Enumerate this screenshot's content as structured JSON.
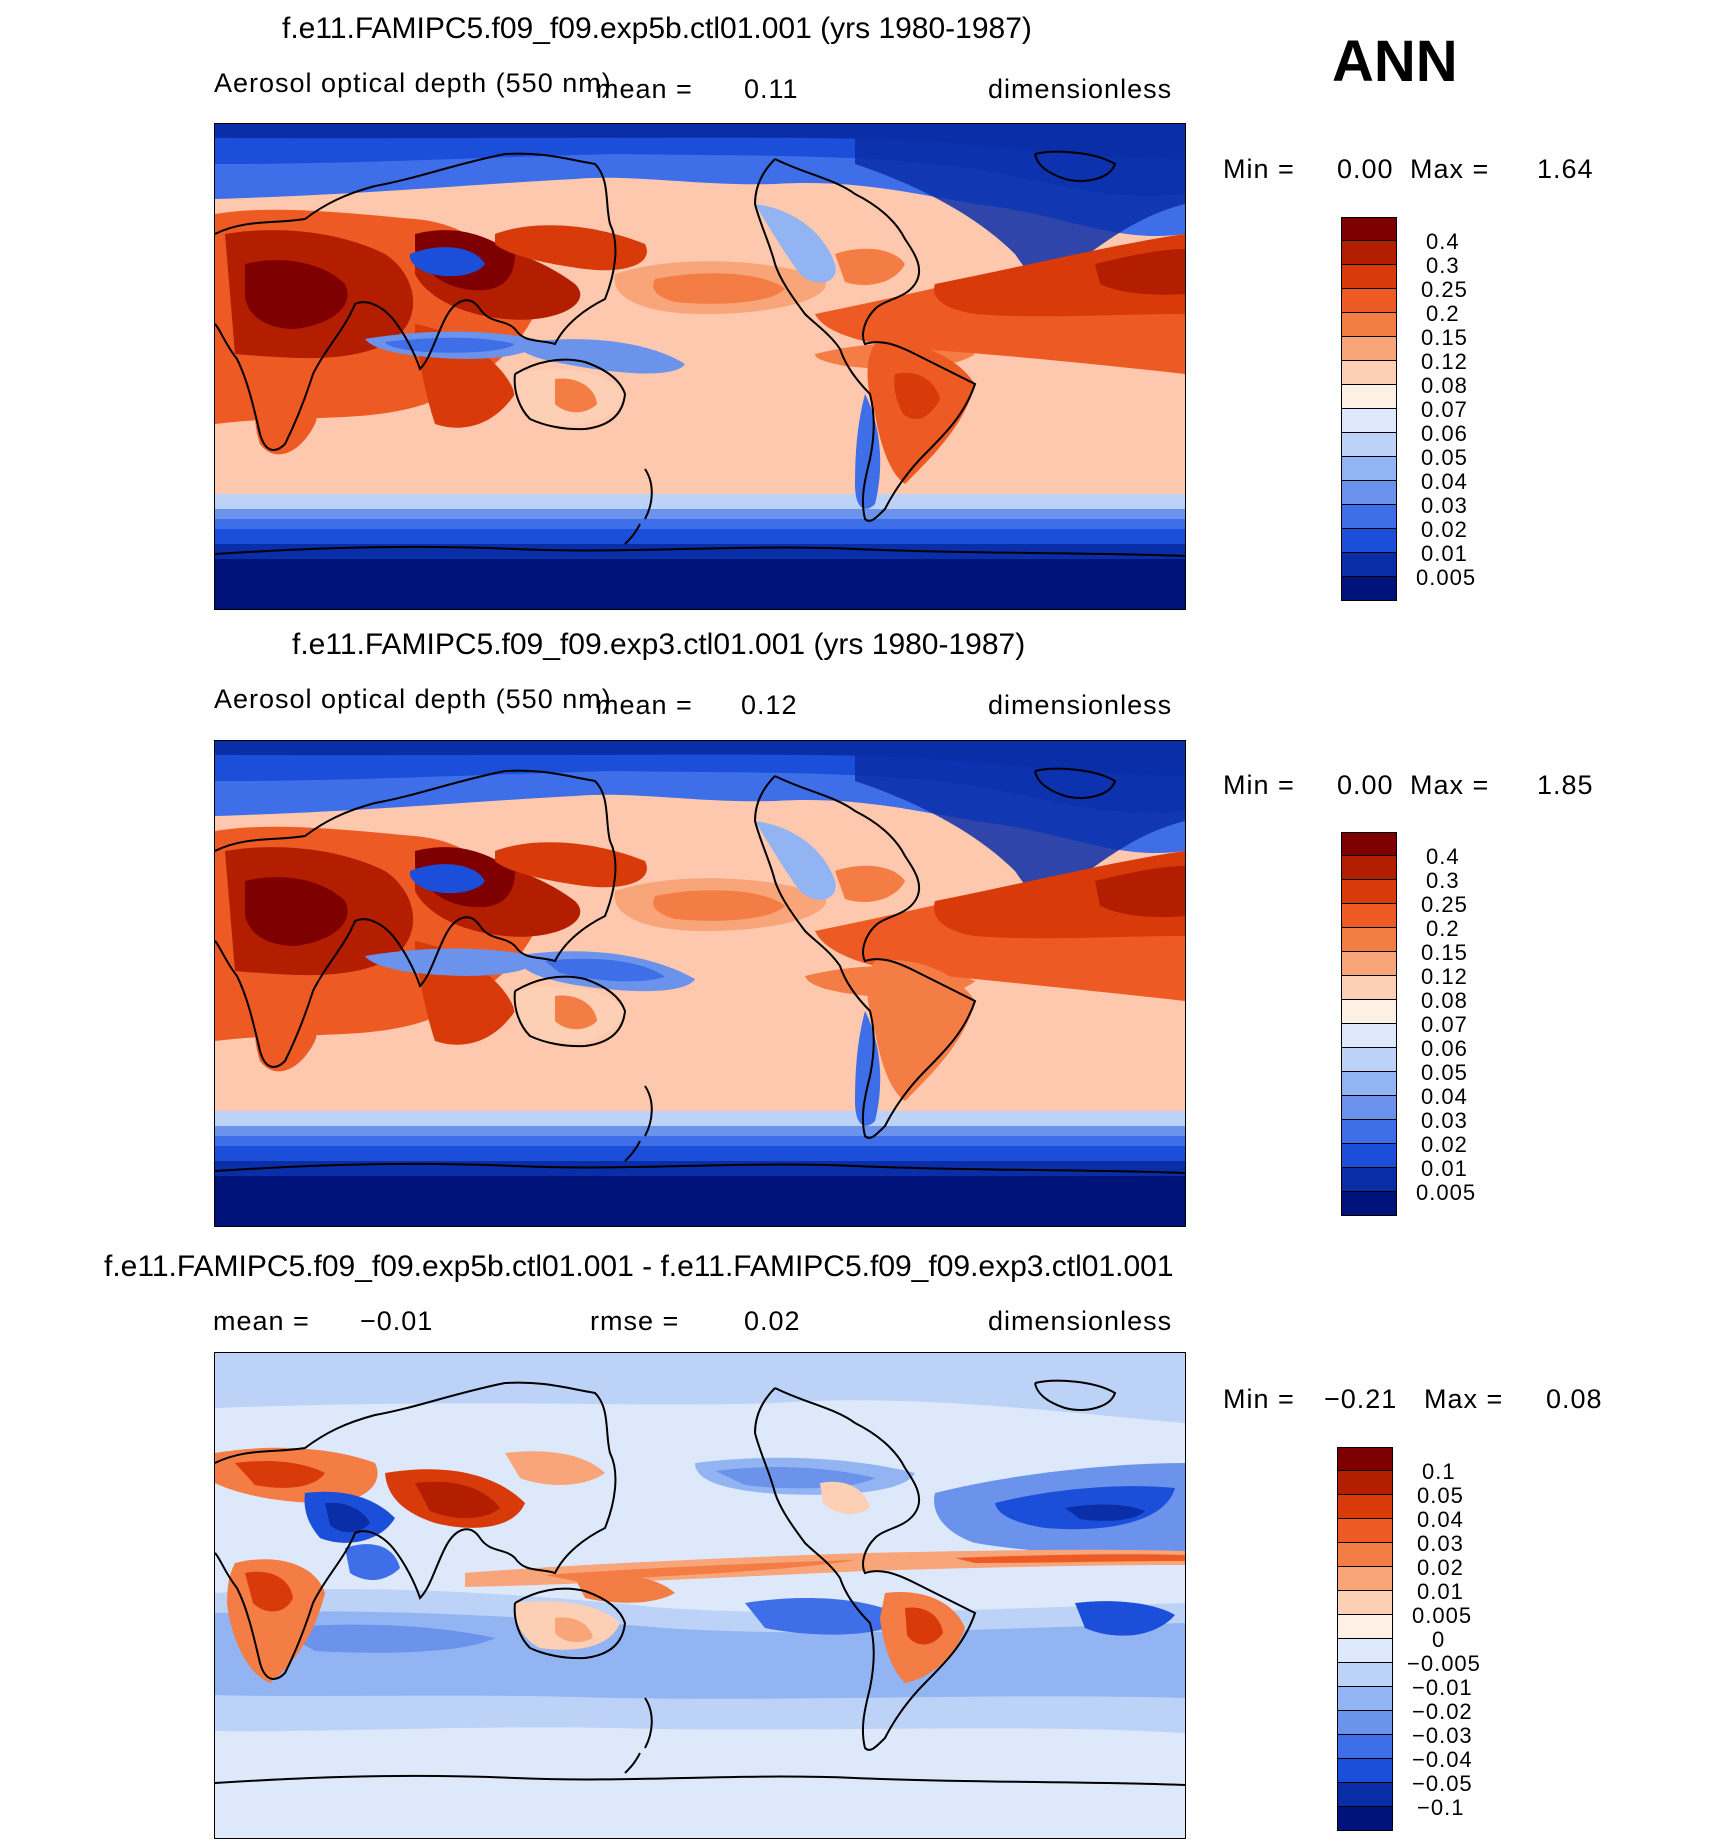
{
  "season": "ANN",
  "panels": [
    {
      "title": "f.e11.FAMIPC5.f09_f09.exp5b.ctl01.001 (yrs 1980-1987)",
      "variable": "Aerosol optical depth (550 nm)",
      "stat1": "mean =",
      "stat1_value": "0.11",
      "stat2": "",
      "stat2_value": "",
      "units": "dimensionless",
      "min_label": "Min =",
      "min_value": "0.00",
      "max_label": "Max =",
      "max_value": "1.64",
      "colorbar": {
        "labels": [
          "0.4",
          "0.3",
          "0.25",
          "0.2",
          "0.15",
          "0.12",
          "0.08",
          "0.07",
          "0.06",
          "0.05",
          "0.04",
          "0.03",
          "0.02",
          "0.01",
          "0.005"
        ],
        "colors": [
          "#7f0000",
          "#b31d00",
          "#d83a0a",
          "#ee5a24",
          "#f47c45",
          "#f9a57a",
          "#fdd0b5",
          "#fef0e4",
          "#dde9fb",
          "#bcd2f7",
          "#93b4f2",
          "#6c93ec",
          "#3e6ee8",
          "#1b4ed9",
          "#0a2ea8",
          "#00137a"
        ]
      }
    },
    {
      "title": "f.e11.FAMIPC5.f09_f09.exp3.ctl01.001 (yrs 1980-1987)",
      "variable": "Aerosol optical depth (550 nm)",
      "stat1": "mean =",
      "stat1_value": "0.12",
      "stat2": "",
      "stat2_value": "",
      "units": "dimensionless",
      "min_label": "Min =",
      "min_value": "0.00",
      "max_label": "Max =",
      "max_value": "1.85",
      "colorbar": {
        "labels": [
          "0.4",
          "0.3",
          "0.25",
          "0.2",
          "0.15",
          "0.12",
          "0.08",
          "0.07",
          "0.06",
          "0.05",
          "0.04",
          "0.03",
          "0.02",
          "0.01",
          "0.005"
        ],
        "colors": [
          "#7f0000",
          "#b31d00",
          "#d83a0a",
          "#ee5a24",
          "#f47c45",
          "#f9a57a",
          "#fdd0b5",
          "#fef0e4",
          "#dde9fb",
          "#bcd2f7",
          "#93b4f2",
          "#6c93ec",
          "#3e6ee8",
          "#1b4ed9",
          "#0a2ea8",
          "#00137a"
        ]
      }
    },
    {
      "title": "f.e11.FAMIPC5.f09_f09.exp5b.ctl01.001 - f.e11.FAMIPC5.f09_f09.exp3.ctl01.001",
      "variable": "",
      "stat1": "mean =",
      "stat1_value": "−0.01",
      "stat2": "rmse =",
      "stat2_value": "0.02",
      "units": "dimensionless",
      "min_label": "Min =",
      "min_value": "−0.21",
      "max_label": "Max =",
      "max_value": "0.08",
      "colorbar": {
        "labels": [
          "0.1",
          "0.05",
          "0.04",
          "0.03",
          "0.02",
          "0.01",
          "0.005",
          "0",
          "−0.005",
          "−0.01",
          "−0.02",
          "−0.03",
          "−0.04",
          "−0.05",
          "−0.1"
        ],
        "colors": [
          "#7f0000",
          "#b31d00",
          "#d83a0a",
          "#ee5a24",
          "#f47c45",
          "#f9a57a",
          "#fdd0b5",
          "#fef0e4",
          "#dde9fb",
          "#bcd2f7",
          "#93b4f2",
          "#6c93ec",
          "#3e6ee8",
          "#1b4ed9",
          "#0a2ea8",
          "#00137a"
        ]
      }
    }
  ]
}
